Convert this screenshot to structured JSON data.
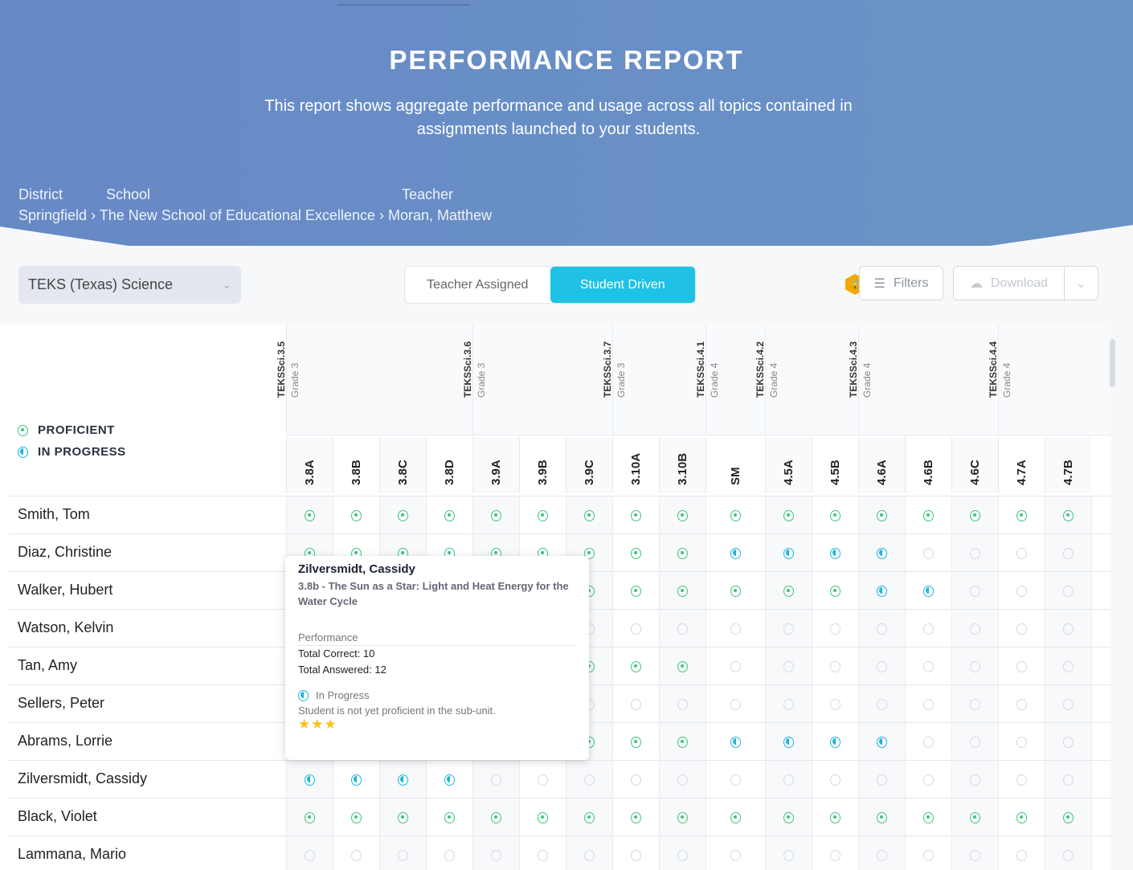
{
  "header": {
    "title": "PERFORMANCE REPORT",
    "subtitle": "This report shows aggregate performance and usage across all topics contained in assignments launched to your students.",
    "breadcrumb": {
      "district_label": "District",
      "school_label": "School",
      "teacher_label": "Teacher",
      "district": "Springfield",
      "school": "The New School of Educational Excellence",
      "teacher": "Moran, Matthew",
      "separator": "›"
    }
  },
  "controls": {
    "standard_select": "TEKS (Texas) Science",
    "tabs": [
      "Teacher Assigned",
      "Student Driven"
    ],
    "active_tab": "Student Driven",
    "filters_label": "Filters",
    "download_label": "Download"
  },
  "legend": {
    "proficient": "PROFICIENT",
    "in_progress": "IN PROGRESS"
  },
  "colors": {
    "proficient": "#3ec57f",
    "in_progress": "#1fb4e0",
    "accent": "#1fc2e4",
    "lock": "#f5a800"
  },
  "groups": [
    {
      "code": "TEKSSci.3.5",
      "grade": "Grade 3",
      "span": 4
    },
    {
      "code": "TEKSSci.3.6",
      "grade": "Grade 3",
      "span": 3
    },
    {
      "code": "TEKSSci.3.7",
      "grade": "Grade 3",
      "span": 2
    },
    {
      "code": "TEKSSci.4.1",
      "grade": "Grade 4",
      "span": 1
    },
    {
      "code": "TEKSSci.4.2",
      "grade": "Grade 4",
      "span": 2
    },
    {
      "code": "TEKSSci.4.3",
      "grade": "Grade 4",
      "span": 3
    },
    {
      "code": "TEKSSci.4.4",
      "grade": "Grade 4",
      "span": 2
    }
  ],
  "columns": [
    "3.8A",
    "3.8B",
    "3.8C",
    "3.8D",
    "3.9A",
    "3.9B",
    "3.9C",
    "3.10A",
    "3.10B",
    "SM",
    "4.5A",
    "4.5B",
    "4.6A",
    "4.6B",
    "4.6C",
    "4.7A",
    "4.7B"
  ],
  "students": [
    {
      "name": "Smith, Tom",
      "status": "PPPPPPPPPPPPPPPPP"
    },
    {
      "name": "Diaz, Christine",
      "status": "PPPPPPPPPIIIIEEEE"
    },
    {
      "name": "Walker, Hubert",
      "status": "PPPPPPPPPPPPIIEEE"
    },
    {
      "name": "Watson, Kelvin",
      "status": "EEEEEEEEEEEEEEEEE"
    },
    {
      "name": "Tan, Amy",
      "status": "PPPPPPPPPEEEEEEEE"
    },
    {
      "name": "Sellers, Peter",
      "status": "EEEEEEEEEEEEEEEEE"
    },
    {
      "name": "Abrams, Lorrie",
      "status": "PPPPPPPPPIIIIEEEE"
    },
    {
      "name": "Zilversmidt, Cassidy",
      "status": "IIIIEEEEEEEEEEEEE"
    },
    {
      "name": "Black, Violet",
      "status": "PPPPPPPPPPPPPPPPP"
    },
    {
      "name": "Lammana, Mario",
      "status": "EEEEEEEEEEEEEEEEE"
    }
  ],
  "tooltip": {
    "student": "Zilversmidt, Cassidy",
    "topic": "3.8b - The Sun as a Star: Light and Heat Energy for the Water Cycle",
    "performance_label": "Performance",
    "total_correct": "Total Correct: 10",
    "total_answered": "Total Answered: 12",
    "status": "In Progress",
    "status_desc": "Student is not yet proficient in the sub-unit.",
    "stars": "★★★",
    "star_count": 3
  }
}
